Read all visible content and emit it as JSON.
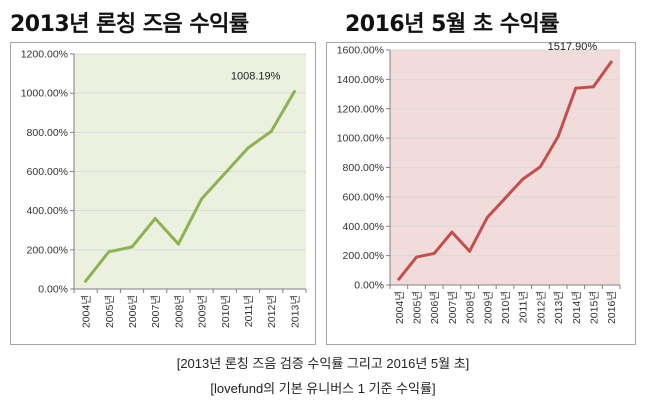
{
  "headings": {
    "left": "2013년 론칭 즈음 수익률",
    "right": "2016년 5월 초 수익률"
  },
  "captions": {
    "line1": "[2013년 론칭 즈음 검증 수익률 그리고 2016년 5월 초]",
    "line2": "[lovefund의 기본 유니버스 1 기준 수익률]"
  },
  "colors": {
    "left_line": "#8db255",
    "left_bg": "#ebf1de",
    "right_line": "#c0504d",
    "right_bg": "#f2dcdb",
    "grid": "#d9d9d9",
    "border": "#a6a6a6"
  },
  "chart_data": [
    {
      "type": "line",
      "categories": [
        "2004년",
        "2005년",
        "2006년",
        "2007년",
        "2008년",
        "2009년",
        "2010년",
        "2011년",
        "2012년",
        "2013년"
      ],
      "series": [
        {
          "values": [
            40,
            190,
            215,
            360,
            230,
            460,
            590,
            720,
            805,
            1008.19
          ]
        }
      ],
      "ylim": [
        0,
        1200
      ],
      "yticks": [
        0,
        200,
        400,
        600,
        800,
        1000,
        1200
      ],
      "ytick_labels": [
        "0.00%",
        "200.00%",
        "400.00%",
        "600.00%",
        "800.00%",
        "1000.00%",
        "1200.00%"
      ],
      "annotation": "1008.19%",
      "grid": true
    },
    {
      "type": "line",
      "categories": [
        "2004년",
        "2005년",
        "2006년",
        "2007년",
        "2008년",
        "2009년",
        "2010년",
        "2011년",
        "2012년",
        "2013년",
        "2014년",
        "2015년",
        "2016년"
      ],
      "series": [
        {
          "values": [
            40,
            190,
            215,
            360,
            230,
            460,
            590,
            720,
            805,
            1010,
            1340,
            1350,
            1517.9
          ]
        }
      ],
      "ylim": [
        0,
        1600
      ],
      "yticks": [
        0,
        200,
        400,
        600,
        800,
        1000,
        1200,
        1400,
        1600
      ],
      "ytick_labels": [
        "0.00%",
        "200.00%",
        "400.00%",
        "600.00%",
        "800.00%",
        "1000.00%",
        "1200.00%",
        "1400.00%",
        "1600.00%"
      ],
      "annotation": "1517.90%",
      "grid": true
    }
  ]
}
